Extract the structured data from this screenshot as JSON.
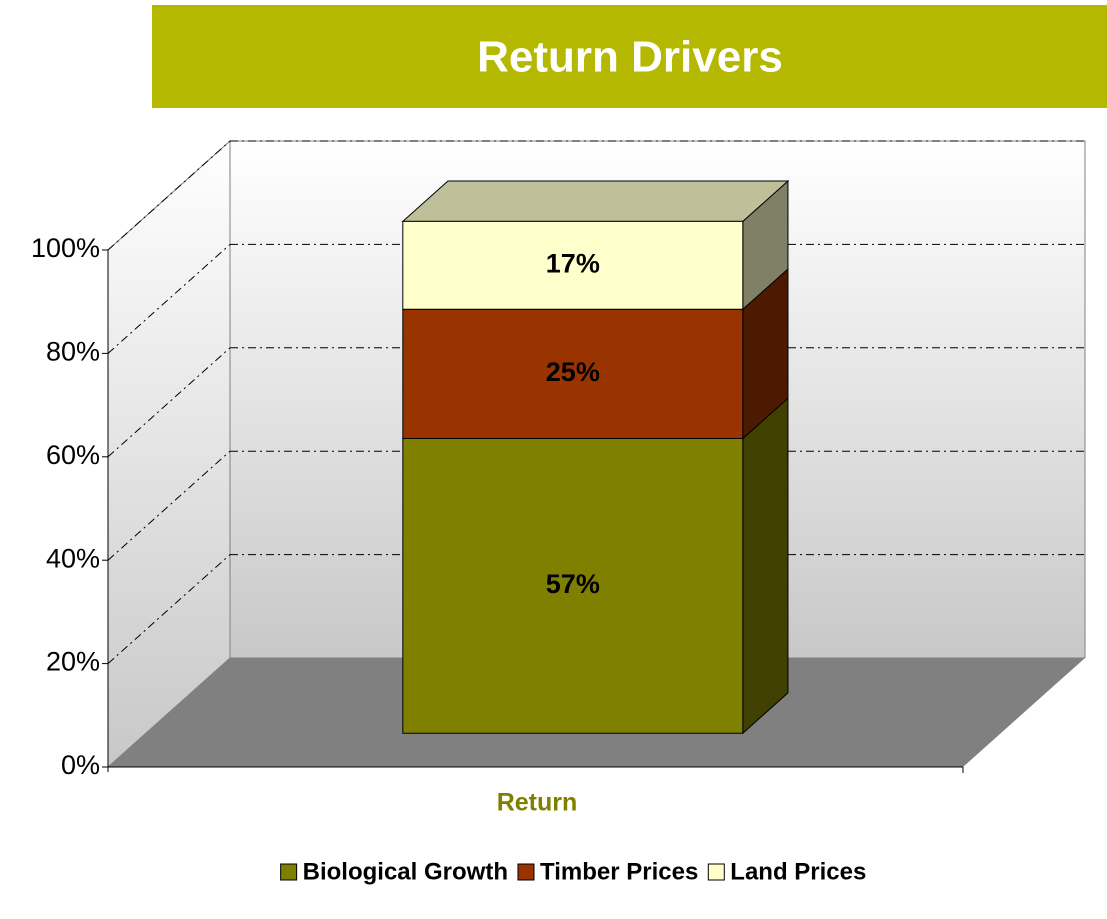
{
  "chart_data": {
    "type": "stacked_bar_3d",
    "title": "Return Drivers",
    "categories": [
      "Return"
    ],
    "series": [
      {
        "name": "Biological Growth",
        "color": "#808000",
        "values": [
          57
        ],
        "value_labels": [
          "57%"
        ]
      },
      {
        "name": "Timber Prices",
        "color": "#993300",
        "values": [
          25
        ],
        "value_labels": [
          "25%"
        ]
      },
      {
        "name": "Land Prices",
        "color": "#ffffcc",
        "values": [
          17
        ],
        "value_labels": [
          "17%"
        ]
      }
    ],
    "ylim": [
      0,
      100
    ],
    "yticks": [
      {
        "value": 0,
        "label": "0%"
      },
      {
        "value": 20,
        "label": "20%"
      },
      {
        "value": 40,
        "label": "40%"
      },
      {
        "value": 60,
        "label": "60%"
      },
      {
        "value": 80,
        "label": "80%"
      },
      {
        "value": 100,
        "label": "100%"
      }
    ],
    "grid": true,
    "legend": "bottom",
    "title_background": "#b5b800"
  }
}
